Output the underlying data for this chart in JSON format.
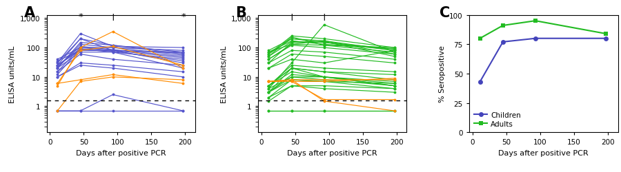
{
  "panel_A_label": "A",
  "panel_B_label": "B",
  "panel_C_label": "C",
  "xlabel": "Days after positive PCR",
  "ylabel_AB": "ELISA units/mL",
  "ylabel_C": "% Seropositive",
  "cutoff": 1.6,
  "color_symptomatic_children": "#5555cc",
  "color_asymptomatic": "#ff8c00",
  "color_symptomatic_adults": "#22bb22",
  "color_children_C": "#4444bb",
  "color_adults_C": "#22bb22",
  "children_C_days": [
    11,
    45,
    93,
    197
  ],
  "children_C_values": [
    43,
    77,
    80,
    80
  ],
  "adults_C_days": [
    11,
    45,
    93,
    197
  ],
  "adults_C_values": [
    80,
    91,
    95,
    84
  ],
  "children_symptomatic_values": [
    [
      30,
      300,
      110,
      100
    ],
    [
      25,
      200,
      80,
      70
    ],
    [
      20,
      150,
      120,
      60
    ],
    [
      22,
      110,
      85,
      50
    ],
    [
      15,
      100,
      80,
      45
    ],
    [
      12,
      90,
      70,
      40
    ],
    [
      0.7,
      0.7,
      0.7,
      0.7
    ],
    [
      0.7,
      0.7,
      2.5,
      0.7
    ],
    [
      25,
      80,
      80,
      65
    ],
    [
      35,
      80,
      80,
      30
    ],
    [
      40,
      100,
      100,
      55
    ],
    [
      20,
      70,
      70,
      20
    ],
    [
      15,
      60,
      40,
      25
    ],
    [
      10,
      30,
      25,
      15
    ],
    [
      10,
      25,
      20,
      10
    ],
    [
      30,
      200,
      120,
      70
    ],
    [
      20,
      130,
      100,
      80
    ],
    [
      25,
      90,
      75,
      35
    ]
  ],
  "children_asymptomatic_values": [
    [
      6,
      8,
      12,
      6
    ],
    [
      5,
      100,
      350,
      20
    ],
    [
      6,
      80,
      110,
      25
    ],
    [
      0.7,
      7,
      10,
      8
    ]
  ],
  "adults_symptomatic_values": [
    [
      60,
      200,
      150,
      80
    ],
    [
      70,
      170,
      130,
      90
    ],
    [
      50,
      230,
      120,
      70
    ],
    [
      40,
      130,
      170,
      60
    ],
    [
      30,
      150,
      160,
      50
    ],
    [
      5,
      25,
      20,
      15
    ],
    [
      3,
      20,
      15,
      12
    ],
    [
      4,
      30,
      600,
      70
    ],
    [
      70,
      130,
      120,
      100
    ],
    [
      20,
      40,
      30,
      80
    ],
    [
      5,
      20,
      10,
      6
    ],
    [
      5,
      15,
      10,
      5
    ],
    [
      3,
      10,
      10,
      5
    ],
    [
      2,
      5,
      5,
      4
    ],
    [
      1.5,
      5,
      4,
      3
    ],
    [
      2,
      8,
      7,
      6
    ],
    [
      3,
      12,
      10,
      7
    ],
    [
      5,
      20,
      15,
      8
    ],
    [
      4,
      10,
      8,
      5
    ],
    [
      3,
      8,
      7,
      4
    ],
    [
      80,
      200,
      170,
      80
    ],
    [
      50,
      160,
      150,
      90
    ],
    [
      40,
      120,
      100,
      60
    ],
    [
      30,
      80,
      70,
      40
    ],
    [
      20,
      60,
      50,
      30
    ],
    [
      0.7,
      0.7,
      0.7,
      0.7
    ],
    [
      60,
      250,
      200,
      100
    ],
    [
      0.7,
      0.7,
      0.7,
      0.7
    ]
  ],
  "adults_asymptomatic_values": [
    [
      7,
      7,
      1.7,
      1.7
    ],
    [
      7,
      8,
      1.5,
      0.7
    ],
    [
      7,
      7,
      7,
      9
    ],
    [
      7,
      8,
      8,
      8
    ]
  ],
  "timepoints": [
    11,
    45,
    93,
    197
  ],
  "annotations_A": {
    "45": "*",
    "93": "†",
    "197": "*"
  },
  "annotations_B": {
    "45": "†",
    "93": "†"
  },
  "yticks_AB": [
    1,
    10,
    100,
    1000
  ],
  "ytick_labels_AB": [
    "1",
    "10",
    "100",
    "1,000"
  ],
  "xticks": [
    0,
    50,
    100,
    150,
    200
  ],
  "xtick_labels": [
    "0",
    "50",
    "100",
    "150",
    "200"
  ],
  "yticks_C": [
    0,
    25,
    50,
    75,
    100
  ],
  "ytick_labels_C": [
    "0",
    "25",
    "50",
    "75",
    "100"
  ]
}
